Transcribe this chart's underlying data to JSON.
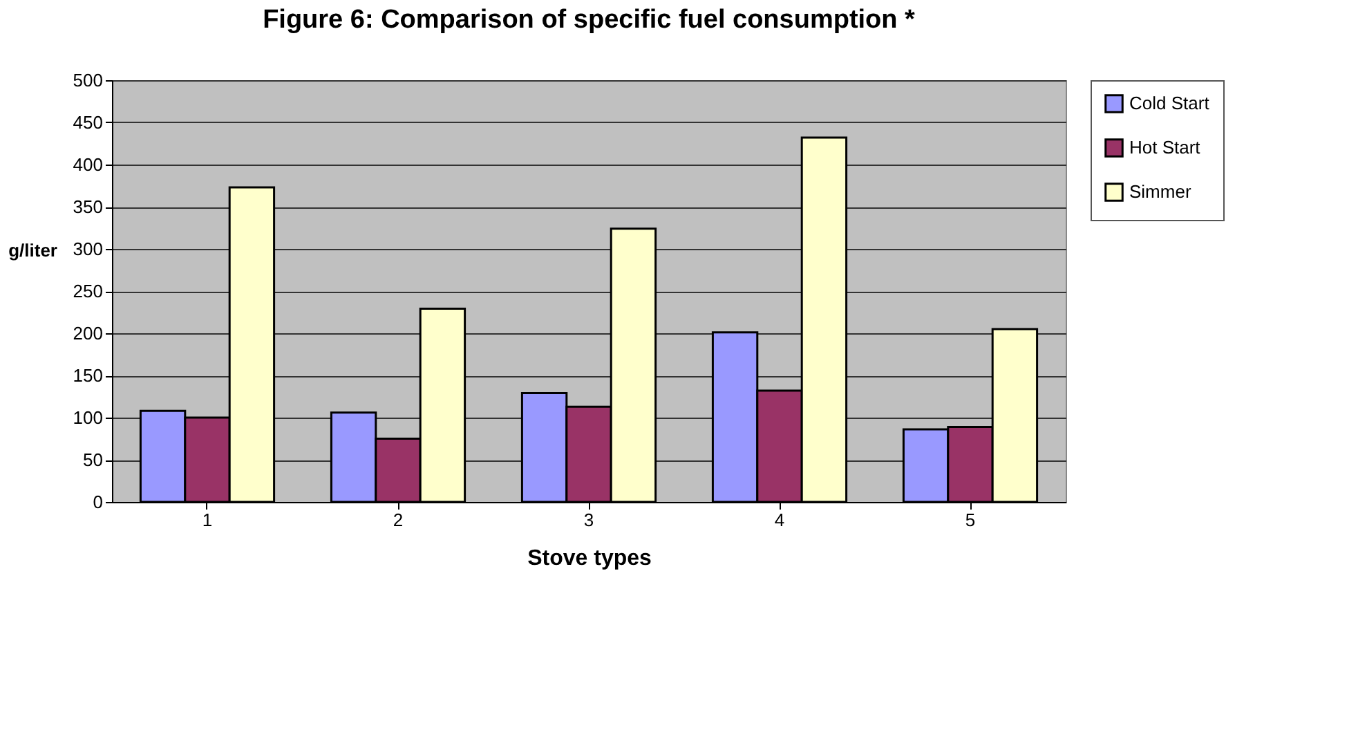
{
  "chart_data": {
    "type": "bar",
    "title": "Figure 6: Comparison of specific fuel consumption *",
    "xlabel": "Stove types",
    "ylabel": "g/liter",
    "categories": [
      "1",
      "2",
      "3",
      "4",
      "5"
    ],
    "series": [
      {
        "name": "Cold Start",
        "color": "#9999ff",
        "values": [
          108,
          106,
          129,
          201,
          86
        ]
      },
      {
        "name": "Hot Start",
        "color": "#993366",
        "values": [
          100,
          75,
          113,
          132,
          89
        ]
      },
      {
        "name": "Simmer",
        "color": "#ffffcc",
        "values": [
          373,
          229,
          324,
          432,
          205
        ]
      }
    ],
    "ylim": [
      0,
      500
    ],
    "yticks": [
      0,
      50,
      100,
      150,
      200,
      250,
      300,
      350,
      400,
      450,
      500
    ],
    "grid": "y",
    "legend": "right"
  }
}
